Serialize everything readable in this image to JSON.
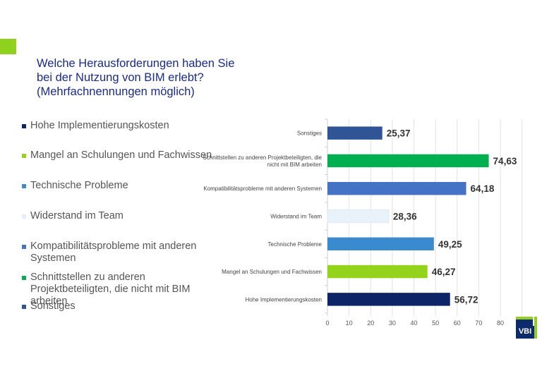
{
  "title": {
    "lines": [
      "Welche Herausforderungen haben Sie",
      "bei der Nutzung von BIM erlebt?",
      "(Mehrfachnennungen möglich)"
    ]
  },
  "legend": {
    "items": [
      {
        "label": "Hohe Implementierungskosten",
        "color": "#0d2466"
      },
      {
        "label": "Mangel an Schulungen und Fachwissen",
        "color": "#94d31b"
      },
      {
        "label": "Technische Probleme",
        "color": "#3a8bcd"
      },
      {
        "label": "Widerstand im Team",
        "color": "#e9f2fb"
      },
      {
        "label": "Kompatibilitätsprobleme mit anderen Systemen",
        "color": "#4472c4"
      },
      {
        "label": "Schnittstellen zu anderen Projektbeteiligten, die nicht mit BIM arbeiten",
        "color": "#00b050"
      },
      {
        "label": "Sonstiges",
        "color": "#2f5597"
      }
    ]
  },
  "logo": {
    "text": "VBI"
  },
  "chart_data": {
    "type": "bar",
    "orientation": "horizontal",
    "title": "Welche Herausforderungen haben Sie bei der Nutzung von BIM erlebt? (Mehrfachnennungen möglich)",
    "xlabel": "",
    "ylabel": "",
    "xlim": [
      0,
      80
    ],
    "ticks": [
      0,
      10,
      20,
      30,
      40,
      50,
      60,
      70,
      80
    ],
    "tick_labels": [
      "0",
      "10",
      "20",
      "30",
      "40",
      "50",
      "60",
      "70",
      "80"
    ],
    "grid": true,
    "legend_position": "left",
    "categories": [
      [
        "Sonstiges"
      ],
      [
        "Schnittstellen zu anderen Projektbeteiligten, die",
        "nicht mit BIM arbeiten"
      ],
      [
        "Kompatibilitätsprobleme mit anderen Systemen"
      ],
      [
        "Widerstand im Team"
      ],
      [
        "Technische Probleme"
      ],
      [
        "Mangel an Schulungen und Fachwissen"
      ],
      [
        "Hohe Implementierungskosten"
      ]
    ],
    "values": [
      25.37,
      74.63,
      64.18,
      28.36,
      49.25,
      46.27,
      56.72
    ],
    "value_labels": [
      "25,37",
      "74,63",
      "64,18",
      "28,36",
      "49,25",
      "46,27",
      "56,72"
    ],
    "colors": [
      "#2f5597",
      "#00b050",
      "#4472c4",
      "#e9f2fb",
      "#3a8bcd",
      "#94d31b",
      "#0d2466"
    ]
  }
}
